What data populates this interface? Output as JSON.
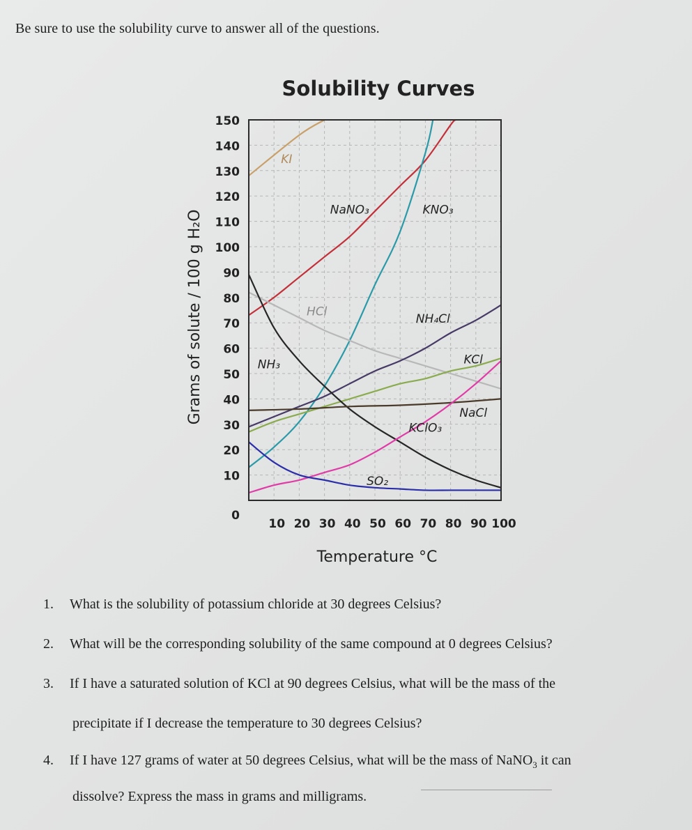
{
  "instruction": "Be sure to use the solubility curve to answer all of the questions.",
  "chart_data": {
    "type": "line",
    "title": "Solubility Curves",
    "xlabel": "Temperature °C",
    "ylabel": "Grams of solute / 100 g H₂O",
    "xlim": [
      0,
      100
    ],
    "ylim": [
      0,
      150
    ],
    "x_ticks": [
      "10",
      "20",
      "30",
      "40",
      "50",
      "60",
      "70",
      "80",
      "90",
      "100"
    ],
    "y_ticks": [
      "0",
      "10",
      "20",
      "30",
      "40",
      "50",
      "60",
      "70",
      "80",
      "90",
      "100",
      "110",
      "120",
      "130",
      "140",
      "150"
    ],
    "grid": true,
    "series": [
      {
        "name": "KI",
        "label_x": 15,
        "label_y": 133,
        "color": "#c9a06a",
        "points": [
          [
            0,
            128
          ],
          [
            20,
            144
          ],
          [
            30,
            150
          ]
        ]
      },
      {
        "name": "NaNO₃",
        "label_x": 40,
        "label_y": 113,
        "color": "#c2303a",
        "points": [
          [
            0,
            73
          ],
          [
            10,
            80
          ],
          [
            20,
            88
          ],
          [
            30,
            96
          ],
          [
            40,
            104
          ],
          [
            50,
            114
          ],
          [
            60,
            124
          ],
          [
            70,
            134
          ],
          [
            80,
            148
          ],
          [
            82,
            150
          ]
        ]
      },
      {
        "name": "KNO₃",
        "label_x": 75,
        "label_y": 113,
        "color": "#2a9aa8",
        "points": [
          [
            0,
            13
          ],
          [
            10,
            21
          ],
          [
            20,
            31
          ],
          [
            30,
            45
          ],
          [
            40,
            63
          ],
          [
            50,
            85
          ],
          [
            60,
            106
          ],
          [
            70,
            137
          ],
          [
            73,
            150
          ]
        ]
      },
      {
        "name": "HCl",
        "label_x": 27,
        "label_y": 73,
        "color": "#b8b8b8",
        "points": [
          [
            0,
            82
          ],
          [
            10,
            77
          ],
          [
            20,
            72
          ],
          [
            30,
            67
          ],
          [
            40,
            63
          ],
          [
            50,
            59
          ],
          [
            60,
            56
          ],
          [
            70,
            53
          ],
          [
            80,
            50
          ],
          [
            90,
            47
          ],
          [
            100,
            44
          ]
        ]
      },
      {
        "name": "NH₄Cl",
        "label_x": 73,
        "label_y": 70,
        "color": "#473a66",
        "points": [
          [
            0,
            29
          ],
          [
            10,
            33
          ],
          [
            20,
            37
          ],
          [
            30,
            41
          ],
          [
            40,
            46
          ],
          [
            50,
            51
          ],
          [
            60,
            55
          ],
          [
            70,
            60
          ],
          [
            80,
            66
          ],
          [
            90,
            71
          ],
          [
            100,
            77
          ]
        ]
      },
      {
        "name": "KCl",
        "label_x": 89,
        "label_y": 54,
        "color": "#8aab4e",
        "points": [
          [
            0,
            27
          ],
          [
            10,
            31
          ],
          [
            20,
            34
          ],
          [
            30,
            37
          ],
          [
            40,
            40
          ],
          [
            50,
            43
          ],
          [
            60,
            46
          ],
          [
            70,
            48
          ],
          [
            80,
            51
          ],
          [
            90,
            53
          ],
          [
            100,
            56
          ]
        ]
      },
      {
        "name": "NH₃",
        "label_x": 8,
        "label_y": 52,
        "color": "#262626",
        "points": [
          [
            0,
            89
          ],
          [
            10,
            68
          ],
          [
            20,
            55
          ],
          [
            30,
            45
          ],
          [
            40,
            36
          ],
          [
            50,
            29
          ],
          [
            60,
            23
          ],
          [
            70,
            17
          ],
          [
            80,
            12
          ],
          [
            90,
            8
          ],
          [
            100,
            5
          ]
        ]
      },
      {
        "name": "NaCl",
        "label_x": 89,
        "label_y": 33,
        "color": "#4a3a2a",
        "points": [
          [
            0,
            35.5
          ],
          [
            20,
            36
          ],
          [
            40,
            37
          ],
          [
            60,
            37.5
          ],
          [
            80,
            38.5
          ],
          [
            100,
            40
          ]
        ]
      },
      {
        "name": "KClO₃",
        "label_x": 70,
        "label_y": 27,
        "color": "#e03ca8",
        "points": [
          [
            0,
            3
          ],
          [
            10,
            6
          ],
          [
            20,
            8
          ],
          [
            30,
            11
          ],
          [
            40,
            14
          ],
          [
            50,
            19
          ],
          [
            60,
            25
          ],
          [
            70,
            31
          ],
          [
            80,
            38
          ],
          [
            90,
            46
          ],
          [
            100,
            55
          ]
        ]
      },
      {
        "name": "SO₂",
        "label_x": 51,
        "label_y": 6,
        "color": "#2a2ea8",
        "points": [
          [
            0,
            23
          ],
          [
            10,
            15
          ],
          [
            20,
            10
          ],
          [
            30,
            8
          ],
          [
            40,
            6
          ],
          [
            50,
            5
          ],
          [
            60,
            4.5
          ],
          [
            70,
            4
          ],
          [
            80,
            4
          ],
          [
            90,
            4
          ],
          [
            100,
            4
          ]
        ]
      }
    ]
  },
  "questions": [
    {
      "num": "1.",
      "text": "What is the solubility of potassium chloride at 30 degrees Celsius?"
    },
    {
      "num": "2.",
      "text": "What will be the corresponding solubility of the same compound at 0 degrees Celsius?"
    },
    {
      "num": "3.",
      "text": "If I have a saturated solution of KCl at 90 degrees Celsius, what will be the mass of the",
      "cont": "precipitate if I decrease the temperature to 30 degrees Celsius?"
    },
    {
      "num": "4.",
      "text_pre": "If I have 127 grams of water at 50 degrees Celsius, what will be the mass of NaNO",
      "text_sub": "3",
      "text_post": " it can",
      "cont": "dissolve? Express the mass in grams and milligrams."
    }
  ]
}
